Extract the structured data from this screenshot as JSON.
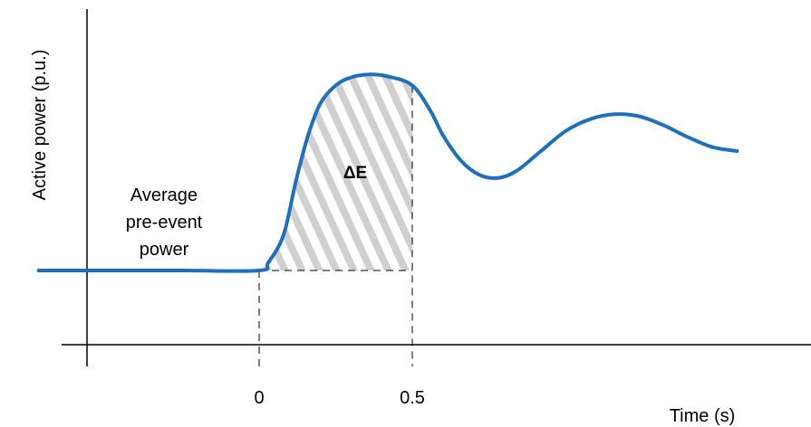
{
  "chart_data": {
    "type": "line",
    "title": "",
    "xlabel": "Time (s)",
    "ylabel": "Active power (p.u.)",
    "x_ticks": [
      "0",
      "0.5"
    ],
    "baseline_label_lines": [
      "Average",
      "pre-event",
      "power"
    ],
    "area_label": "ΔE",
    "grid": false,
    "legend": "none",
    "series": [
      {
        "color": "#1f6fbf",
        "points": [
          [
            -0.72,
            0.0
          ],
          [
            -0.5,
            0.0
          ],
          [
            -0.25,
            0.0
          ],
          [
            0.0,
            0.0
          ],
          [
            0.03,
            0.04
          ],
          [
            0.08,
            0.18
          ],
          [
            0.12,
            0.45
          ],
          [
            0.16,
            0.68
          ],
          [
            0.2,
            0.84
          ],
          [
            0.25,
            0.93
          ],
          [
            0.3,
            0.97
          ],
          [
            0.36,
            0.985
          ],
          [
            0.42,
            0.975
          ],
          [
            0.5,
            0.93
          ],
          [
            0.56,
            0.8
          ],
          [
            0.6,
            0.68
          ],
          [
            0.66,
            0.55
          ],
          [
            0.72,
            0.48
          ],
          [
            0.78,
            0.465
          ],
          [
            0.84,
            0.5
          ],
          [
            0.92,
            0.6
          ],
          [
            1.0,
            0.7
          ],
          [
            1.08,
            0.76
          ],
          [
            1.16,
            0.785
          ],
          [
            1.24,
            0.775
          ],
          [
            1.32,
            0.73
          ],
          [
            1.4,
            0.67
          ],
          [
            1.48,
            0.62
          ],
          [
            1.56,
            0.6
          ]
        ]
      }
    ],
    "hatched_area": {
      "x_from": 0.0,
      "x_to": 0.5,
      "fill": "#d0d0d0"
    }
  }
}
